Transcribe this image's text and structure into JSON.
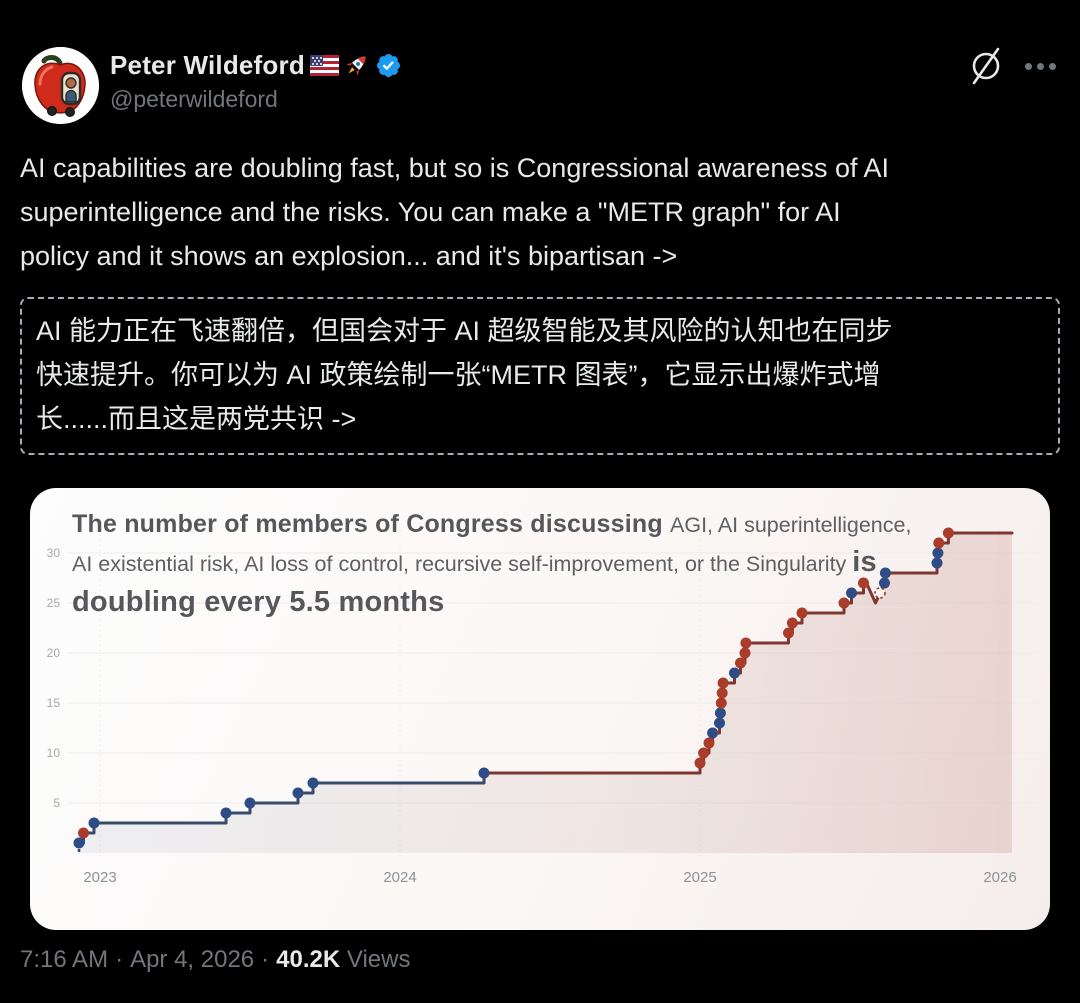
{
  "colors": {
    "background": "#000000",
    "text_primary": "#e7e9ea",
    "text_secondary": "#71767b",
    "verified_blue": "#1d9bf0",
    "dashed_box_border": "#a4aeb8"
  },
  "header": {
    "display_name": "Peter Wildeford",
    "name_emojis": [
      "us-flag",
      "rocket"
    ],
    "verified": true,
    "handle": "@peterwildeford"
  },
  "tweet": {
    "lines_en": [
      "AI capabilities are doubling fast, but so is Congressional awareness of AI",
      "superintelligence and the risks. You can make a \"METR graph\" for AI",
      "policy and it shows an explosion... and it's bipartisan ->"
    ],
    "lines_zh": [
      "AI 能力正在飞速翻倍，但国会对于 AI 超级智能及其风险的认知也在同步",
      "快速提升。你可以为 AI 政策绘制一张“METR 图表”，它显示出爆炸式增",
      "长......而且这是两党共识 ->"
    ]
  },
  "chart_data": {
    "type": "line",
    "subtype": "step",
    "title_lines": [
      [
        {
          "text": "The number of members of Congress discussing ",
          "bold": true
        },
        {
          "text": "AGI, AI superintelligence,",
          "bold": false
        }
      ],
      [
        {
          "text": "AI existential risk, AI loss of control, recursive self-improvement, or the Singularity ",
          "bold": false
        },
        {
          "text": "is",
          "bold": true
        }
      ],
      [
        {
          "text": "doubling every 5.5 months",
          "bold": true
        }
      ]
    ],
    "ylabel": "",
    "xlabel": "",
    "yticks": [
      5,
      10,
      15,
      20,
      25,
      30
    ],
    "xticks": [
      2023,
      2024,
      2025,
      2026
    ],
    "ylim": [
      0,
      34
    ],
    "xlim": [
      2022.85,
      2026.08
    ],
    "grid": true,
    "legend": false,
    "colors": {
      "democrat_dot": "#2e4d86",
      "republican_dot": "#a93c2a",
      "line_early": "#3a4a6b",
      "line_late": "#7e3631"
    },
    "points": [
      {
        "date": 2022.93,
        "value": 1,
        "party": "D"
      },
      {
        "date": 2022.945,
        "value": 2,
        "party": "R"
      },
      {
        "date": 2022.98,
        "value": 3,
        "party": "D"
      },
      {
        "date": 2023.42,
        "value": 4,
        "party": "D"
      },
      {
        "date": 2023.5,
        "value": 5,
        "party": "D"
      },
      {
        "date": 2023.66,
        "value": 6,
        "party": "D"
      },
      {
        "date": 2023.71,
        "value": 7,
        "party": "D"
      },
      {
        "date": 2024.28,
        "value": 8,
        "party": "D"
      },
      {
        "date": 2025.0,
        "value": 9,
        "party": "R"
      },
      {
        "date": 2025.012,
        "value": 10,
        "party": "R"
      },
      {
        "date": 2025.03,
        "value": 11,
        "party": "R"
      },
      {
        "date": 2025.042,
        "value": 12,
        "party": "D"
      },
      {
        "date": 2025.065,
        "value": 13,
        "party": "D"
      },
      {
        "date": 2025.068,
        "value": 14,
        "party": "D"
      },
      {
        "date": 2025.071,
        "value": 15,
        "party": "R"
      },
      {
        "date": 2025.074,
        "value": 16,
        "party": "R"
      },
      {
        "date": 2025.077,
        "value": 17,
        "party": "R"
      },
      {
        "date": 2025.115,
        "value": 18,
        "party": "D"
      },
      {
        "date": 2025.135,
        "value": 19,
        "party": "R"
      },
      {
        "date": 2025.15,
        "value": 20,
        "party": "R"
      },
      {
        "date": 2025.153,
        "value": 21,
        "party": "R"
      },
      {
        "date": 2025.295,
        "value": 22,
        "party": "R"
      },
      {
        "date": 2025.308,
        "value": 23,
        "party": "R"
      },
      {
        "date": 2025.34,
        "value": 24,
        "party": "R"
      },
      {
        "date": 2025.48,
        "value": 25,
        "party": "R"
      },
      {
        "date": 2025.505,
        "value": 26,
        "party": "D"
      },
      {
        "date": 2025.545,
        "value": 27,
        "party": "R",
        "dip_after": true
      },
      {
        "date": 2025.615,
        "value": 27,
        "party": "D"
      },
      {
        "date": 2025.618,
        "value": 28,
        "party": "D"
      },
      {
        "date": 2025.79,
        "value": 29,
        "party": "D"
      },
      {
        "date": 2025.793,
        "value": 30,
        "party": "D"
      },
      {
        "date": 2025.796,
        "value": 31,
        "party": "R"
      },
      {
        "date": 2025.828,
        "value": 32,
        "party": "R"
      }
    ],
    "dip": {
      "start_date": 2025.555,
      "bottom_date": 2025.585,
      "bottom_value": 25,
      "marker_date": 2025.6,
      "marker_value": 26
    },
    "end_date": 2026.04
  },
  "footer": {
    "time": "7:16 AM",
    "date": "Apr 4, 2026",
    "separator": "·",
    "views_count": "40.2K",
    "views_label": "Views"
  }
}
